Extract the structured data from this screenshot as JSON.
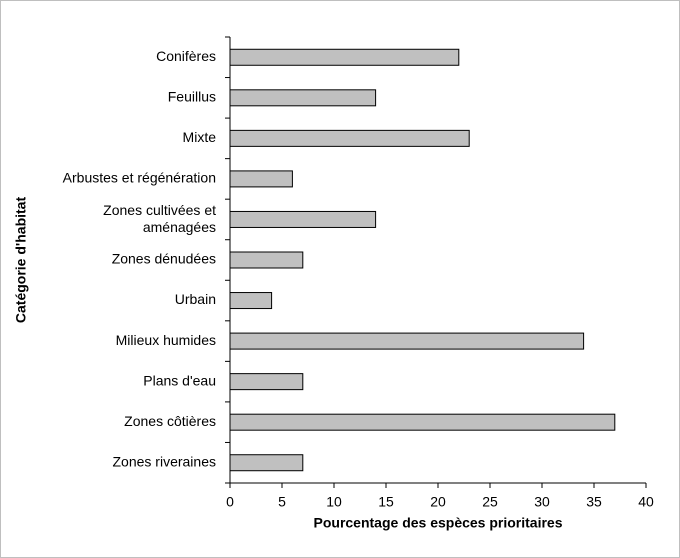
{
  "chart_data": {
    "type": "bar",
    "orientation": "horizontal",
    "x_label": "Pourcentage des espèces prioritaires",
    "y_label": "Catégorie d'habitat",
    "categories": [
      "Conifères",
      "Feuillus",
      "Mixte",
      "Arbustes et régénération",
      "Zones cultivées et aménagées",
      "Zones dénudées",
      "Urbain",
      "Milieux humides",
      "Plans d'eau",
      "Zones côtières",
      "Zones riveraines"
    ],
    "values": [
      22,
      14,
      23,
      6,
      14,
      7,
      4,
      34,
      7,
      37,
      7
    ],
    "color": "#c0c0c0",
    "xlim": [
      0,
      40
    ],
    "xticks": [
      0,
      5,
      10,
      15,
      20,
      25,
      30,
      35,
      40
    ],
    "grid": false
  }
}
